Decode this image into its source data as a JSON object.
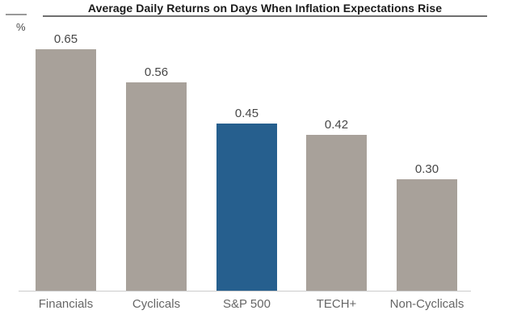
{
  "title": "Average Daily Returns on Days When Inflation Expectations Rise",
  "y_axis_unit": "%",
  "chart_data": {
    "type": "bar",
    "title": "Average Daily Returns on Days When Inflation Expectations Rise",
    "categories": [
      "Financials",
      "Cyclicals",
      "S&P 500",
      "TECH+",
      "Non-Cyclicals"
    ],
    "values": [
      0.65,
      0.56,
      0.45,
      0.42,
      0.3
    ],
    "value_labels": [
      "0.65",
      "0.56",
      "0.45",
      "0.42",
      "0.30"
    ],
    "xlabel": "",
    "ylabel": "%",
    "ylim": [
      0,
      0.7
    ],
    "grid": false,
    "legend": "none",
    "highlight_index": 2,
    "bar_color": "#a8a19a",
    "highlight_color": "#265f8e",
    "axis_line_color": "#cccccc",
    "title_rule_color": "#6f6f6f"
  }
}
